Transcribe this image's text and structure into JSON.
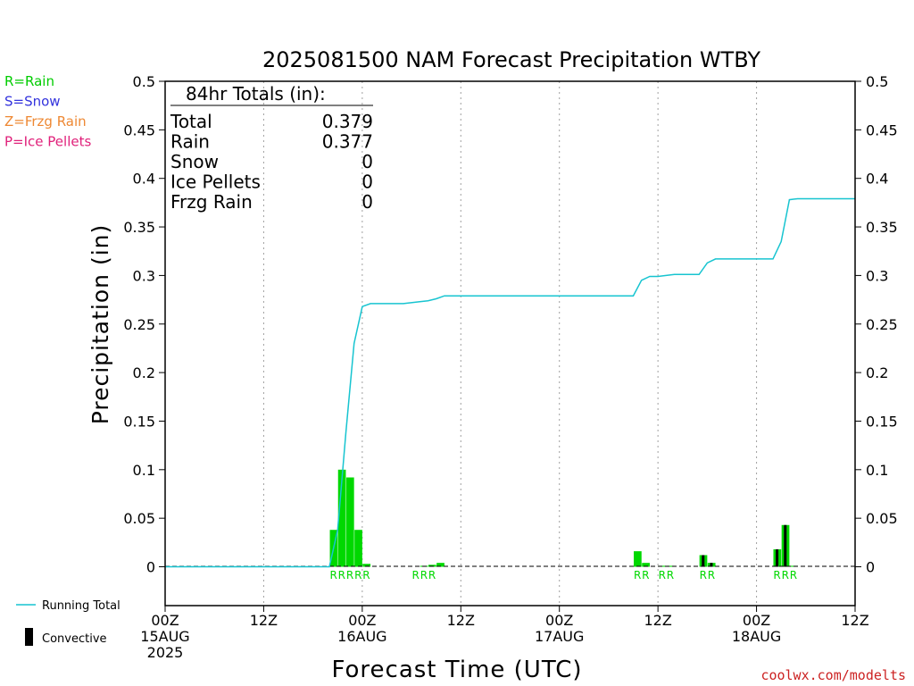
{
  "chart_data": {
    "type": "bar",
    "title": "2025081500 NAM Forecast Precipitation WTBY",
    "xlabel": "Forecast Time (UTC)",
    "ylabel": "Precipitation (in)",
    "ylim": [
      -0.04,
      0.5
    ],
    "xlim_hours": [
      0,
      84
    ],
    "grid": true,
    "y_ticks": [
      "0",
      "0.05",
      "0.1",
      "0.15",
      "0.2",
      "0.25",
      "0.3",
      "0.35",
      "0.4",
      "0.45",
      "0.5"
    ],
    "x_ticks": [
      {
        "hour": 0,
        "lines": [
          "00Z",
          "15AUG",
          "2025"
        ]
      },
      {
        "hour": 12,
        "lines": [
          "12Z"
        ]
      },
      {
        "hour": 24,
        "lines": [
          "00Z",
          "16AUG"
        ]
      },
      {
        "hour": 36,
        "lines": [
          "12Z"
        ]
      },
      {
        "hour": 48,
        "lines": [
          "00Z",
          "17AUG"
        ]
      },
      {
        "hour": 60,
        "lines": [
          "12Z"
        ]
      },
      {
        "hour": 72,
        "lines": [
          "00Z",
          "18AUG"
        ]
      },
      {
        "hour": 84,
        "lines": [
          "12Z"
        ]
      }
    ],
    "hourly_precip": [
      {
        "hour": 21,
        "value": 0.038,
        "type": "R"
      },
      {
        "hour": 22,
        "value": 0.1,
        "type": "R"
      },
      {
        "hour": 23,
        "value": 0.092,
        "type": "R"
      },
      {
        "hour": 24,
        "value": 0.038,
        "type": "R"
      },
      {
        "hour": 25,
        "value": 0.003,
        "type": "R"
      },
      {
        "hour": 32,
        "value": 0.001,
        "type": "R"
      },
      {
        "hour": 33,
        "value": 0.002,
        "type": "R"
      },
      {
        "hour": 34,
        "value": 0.004,
        "type": "R"
      },
      {
        "hour": 58,
        "value": 0.016,
        "type": "R"
      },
      {
        "hour": 59,
        "value": 0.004,
        "type": "R"
      },
      {
        "hour": 61,
        "value": 0.001,
        "type": "R"
      },
      {
        "hour": 62,
        "value": 0.001,
        "type": "R"
      },
      {
        "hour": 66,
        "value": 0.012,
        "type": "R"
      },
      {
        "hour": 67,
        "value": 0.004,
        "type": "R"
      },
      {
        "hour": 75,
        "value": 0.018,
        "type": "R"
      },
      {
        "hour": 76,
        "value": 0.043,
        "type": "R"
      },
      {
        "hour": 77,
        "value": 0.001,
        "type": "R"
      }
    ],
    "convective_precip": [
      {
        "hour": 66,
        "value": 0.012
      },
      {
        "hour": 67,
        "value": 0.004
      },
      {
        "hour": 75,
        "value": 0.018
      },
      {
        "hour": 76,
        "value": 0.043
      }
    ],
    "running_total": [
      {
        "hour": 0,
        "value": 0
      },
      {
        "hour": 20,
        "value": 0
      },
      {
        "hour": 21,
        "value": 0.038
      },
      {
        "hour": 22,
        "value": 0.138
      },
      {
        "hour": 23,
        "value": 0.23
      },
      {
        "hour": 24,
        "value": 0.268
      },
      {
        "hour": 25,
        "value": 0.271
      },
      {
        "hour": 29,
        "value": 0.271
      },
      {
        "hour": 31,
        "value": 0.273
      },
      {
        "hour": 32,
        "value": 0.274
      },
      {
        "hour": 33,
        "value": 0.276
      },
      {
        "hour": 34,
        "value": 0.279
      },
      {
        "hour": 57,
        "value": 0.279
      },
      {
        "hour": 58,
        "value": 0.295
      },
      {
        "hour": 59,
        "value": 0.299
      },
      {
        "hour": 60,
        "value": 0.299
      },
      {
        "hour": 61,
        "value": 0.3
      },
      {
        "hour": 62,
        "value": 0.301
      },
      {
        "hour": 65,
        "value": 0.301
      },
      {
        "hour": 66,
        "value": 0.313
      },
      {
        "hour": 67,
        "value": 0.317
      },
      {
        "hour": 74,
        "value": 0.317
      },
      {
        "hour": 75,
        "value": 0.335
      },
      {
        "hour": 76,
        "value": 0.378
      },
      {
        "hour": 77,
        "value": 0.379
      },
      {
        "hour": 84,
        "value": 0.379
      }
    ],
    "type_labels": [
      {
        "start_hour": 21,
        "text": "RRRRR"
      },
      {
        "start_hour": 31,
        "text": "RRR"
      },
      {
        "start_hour": 58,
        "text": "RR"
      },
      {
        "start_hour": 61,
        "text": "RR"
      },
      {
        "start_hour": 66,
        "text": "RR"
      },
      {
        "start_hour": 75,
        "text": "RRR"
      }
    ],
    "totals_box": {
      "header": "84hr Totals (in):",
      "rows": [
        {
          "label": "Total",
          "value": "0.379"
        },
        {
          "label": "Rain",
          "value": "0.377"
        },
        {
          "label": "Snow",
          "value": "0"
        },
        {
          "label": "Ice Pellets",
          "value": "0"
        },
        {
          "label": "Frzg Rain",
          "value": "0"
        }
      ]
    },
    "type_legend": [
      {
        "text": "R=Rain",
        "color": "#00cc00"
      },
      {
        "text": "S=Snow",
        "color": "#3333dd"
      },
      {
        "text": "Z=Frzg Rain",
        "color": "#ee8833"
      },
      {
        "text": "P=Ice Pellets",
        "color": "#e0207a"
      }
    ],
    "series_legend": {
      "running_total": "Running Total",
      "convective": "Convective"
    },
    "colors": {
      "rain": "#00d800",
      "convective": "#000000",
      "running_total": "#17c4d0",
      "credit": "#cc2222"
    },
    "credit": "coolwx.com/modelts"
  }
}
